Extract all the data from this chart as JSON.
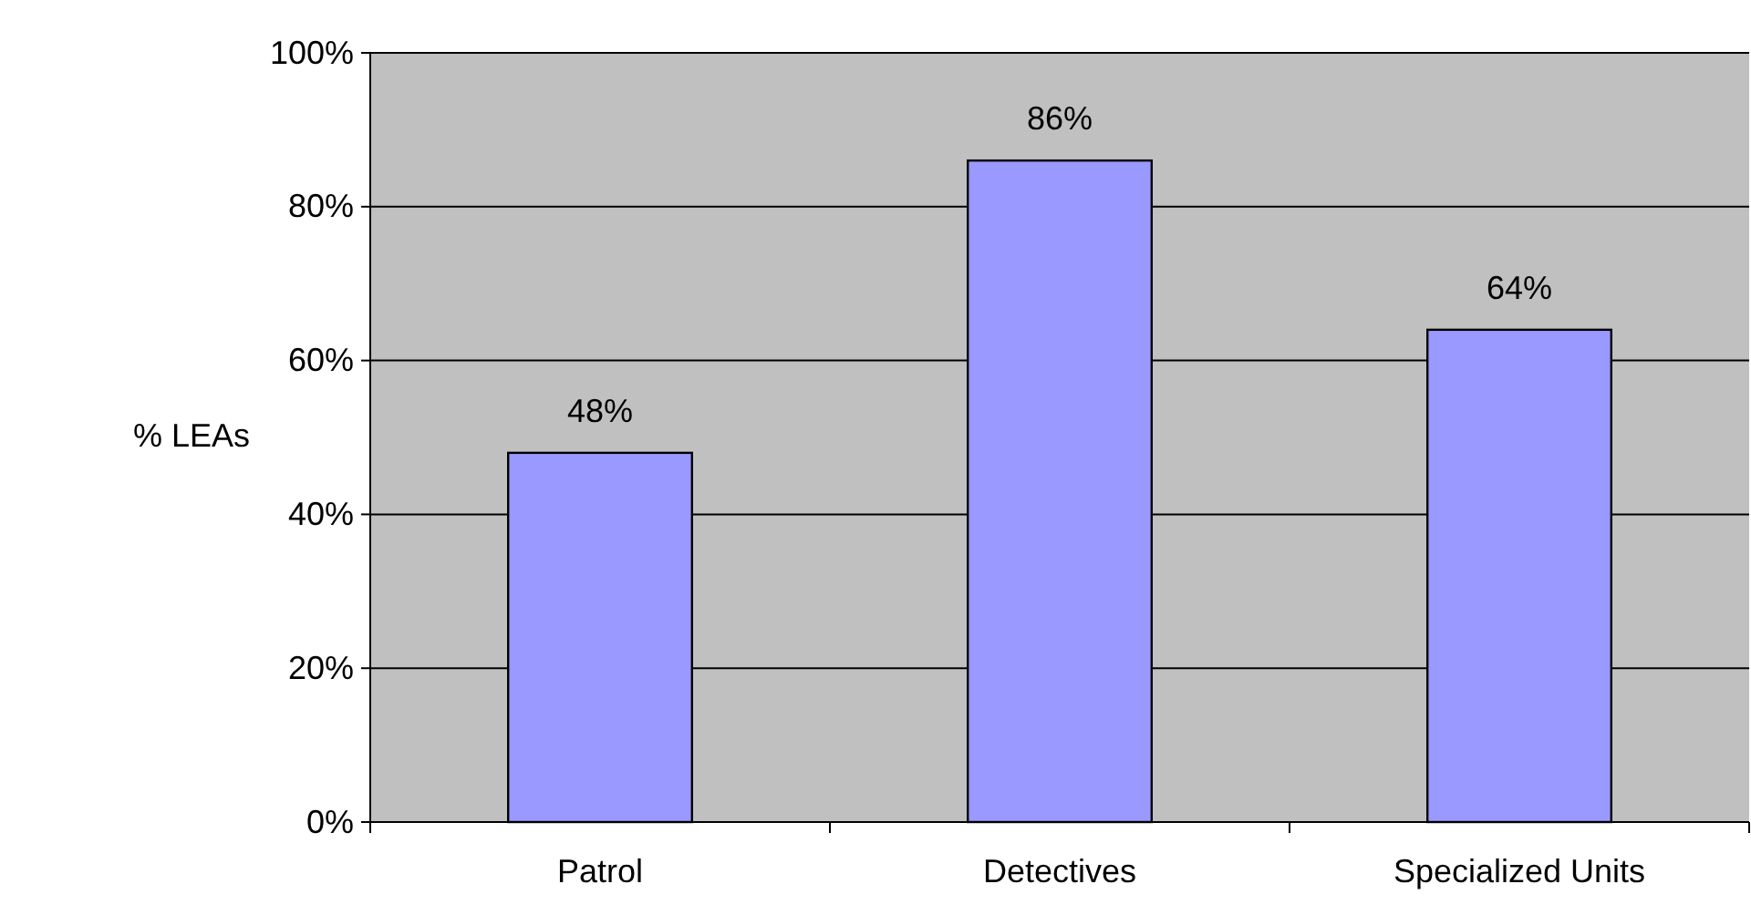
{
  "chart_data": {
    "type": "bar",
    "ylabel": "% LEAs",
    "categories": [
      "Patrol",
      "Detectives",
      "Specialized Units"
    ],
    "values": [
      48,
      86,
      64
    ],
    "value_labels": [
      "48%",
      "86%",
      "64%"
    ],
    "color": "#9999ff",
    "ylim": [
      0,
      100
    ],
    "yticks": [
      {
        "value": 0,
        "label": "0%"
      },
      {
        "value": 20,
        "label": "20%"
      },
      {
        "value": 40,
        "label": "40%"
      },
      {
        "value": 60,
        "label": "60%"
      },
      {
        "value": 80,
        "label": "80%"
      },
      {
        "value": 100,
        "label": "100%"
      }
    ],
    "grid": "y"
  }
}
